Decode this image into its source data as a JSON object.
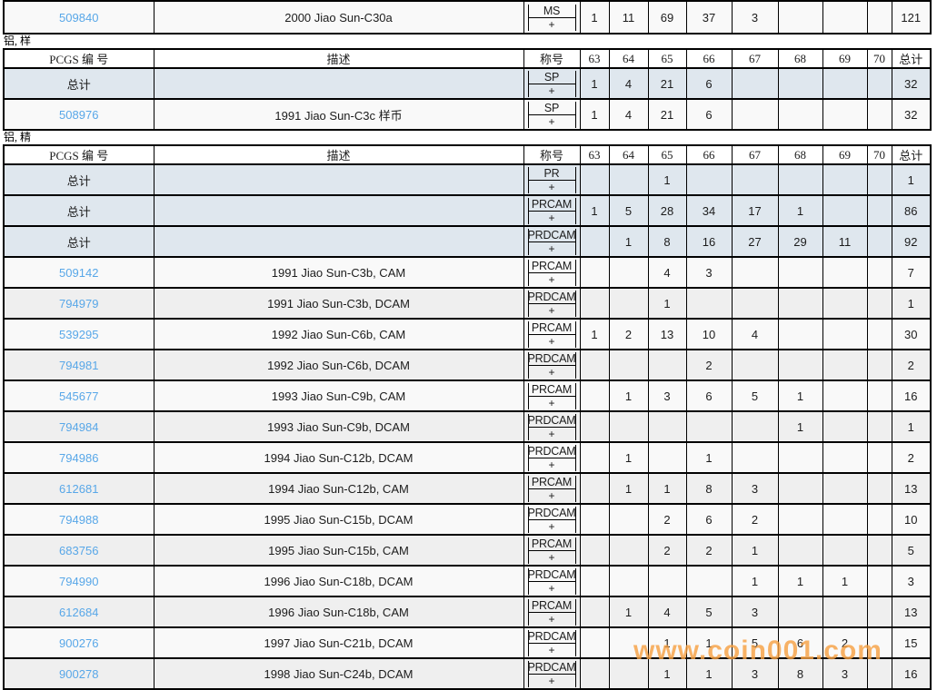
{
  "watermark": {
    "text": "www.coin001.com"
  },
  "colors": {
    "link": "#58a7e8",
    "total_row_bg": "#dfe7ee",
    "alt_row_bg": "#efefef",
    "row_bg": "#f9f9f9",
    "watermark": "#f7a041",
    "border": "#000000"
  },
  "designation_plus": "+",
  "columns": {
    "pcgs": "PCGS 编 号",
    "description": "描述",
    "designation": "称号",
    "grades": [
      "63",
      "64",
      "65",
      "66",
      "67",
      "68",
      "69",
      "70"
    ],
    "total": "总计"
  },
  "sections": [
    {
      "label": "",
      "has_header": false,
      "rows": [
        {
          "pcgs": "509840",
          "is_total": false,
          "desc": "2000 Jiao Sun-C30a",
          "desig": "MS",
          "grades": [
            "1",
            "11",
            "69",
            "37",
            "3",
            "",
            "",
            ""
          ],
          "total": "121"
        }
      ]
    },
    {
      "label": "铝, 样",
      "has_header": true,
      "rows": [
        {
          "pcgs": "总计",
          "is_total": true,
          "desc": "",
          "desig": "SP",
          "grades": [
            "1",
            "4",
            "21",
            "6",
            "",
            "",
            "",
            ""
          ],
          "total": "32"
        },
        {
          "pcgs": "508976",
          "is_total": false,
          "desc": "1991 Jiao Sun-C3c 样币",
          "desig": "SP",
          "grades": [
            "1",
            "4",
            "21",
            "6",
            "",
            "",
            "",
            ""
          ],
          "total": "32"
        }
      ]
    },
    {
      "label": "铝, 精",
      "has_header": true,
      "rows": [
        {
          "pcgs": "总计",
          "is_total": true,
          "desc": "",
          "desig": "PR",
          "grades": [
            "",
            "",
            "1",
            "",
            "",
            "",
            "",
            ""
          ],
          "total": "1"
        },
        {
          "pcgs": "总计",
          "is_total": true,
          "desc": "",
          "desig": "PRCAM",
          "grades": [
            "1",
            "5",
            "28",
            "34",
            "17",
            "1",
            "",
            ""
          ],
          "total": "86"
        },
        {
          "pcgs": "总计",
          "is_total": true,
          "desc": "",
          "desig": "PRDCAM",
          "grades": [
            "",
            "1",
            "8",
            "16",
            "27",
            "29",
            "11",
            ""
          ],
          "total": "92"
        },
        {
          "pcgs": "509142",
          "is_total": false,
          "desc": "1991 Jiao Sun-C3b, CAM",
          "desig": "PRCAM",
          "grades": [
            "",
            "",
            "4",
            "3",
            "",
            "",
            "",
            ""
          ],
          "total": "7"
        },
        {
          "pcgs": "794979",
          "is_total": false,
          "desc": "1991 Jiao Sun-C3b, DCAM",
          "desig": "PRDCAM",
          "grades": [
            "",
            "",
            "1",
            "",
            "",
            "",
            "",
            ""
          ],
          "total": "1"
        },
        {
          "pcgs": "539295",
          "is_total": false,
          "desc": "1992 Jiao Sun-C6b, CAM",
          "desig": "PRCAM",
          "grades": [
            "1",
            "2",
            "13",
            "10",
            "4",
            "",
            "",
            ""
          ],
          "total": "30"
        },
        {
          "pcgs": "794981",
          "is_total": false,
          "desc": "1992 Jiao Sun-C6b, DCAM",
          "desig": "PRDCAM",
          "grades": [
            "",
            "",
            "",
            "2",
            "",
            "",
            "",
            ""
          ],
          "total": "2"
        },
        {
          "pcgs": "545677",
          "is_total": false,
          "desc": "1993 Jiao Sun-C9b, CAM",
          "desig": "PRCAM",
          "grades": [
            "",
            "1",
            "3",
            "6",
            "5",
            "1",
            "",
            ""
          ],
          "total": "16"
        },
        {
          "pcgs": "794984",
          "is_total": false,
          "desc": "1993 Jiao Sun-C9b, DCAM",
          "desig": "PRDCAM",
          "grades": [
            "",
            "",
            "",
            "",
            "",
            "1",
            "",
            ""
          ],
          "total": "1"
        },
        {
          "pcgs": "794986",
          "is_total": false,
          "desc": "1994 Jiao Sun-C12b, DCAM",
          "desig": "PRDCAM",
          "grades": [
            "",
            "1",
            "",
            "1",
            "",
            "",
            "",
            ""
          ],
          "total": "2"
        },
        {
          "pcgs": "612681",
          "is_total": false,
          "desc": "1994 Jiao Sun-C12b, CAM",
          "desig": "PRCAM",
          "grades": [
            "",
            "1",
            "1",
            "8",
            "3",
            "",
            "",
            ""
          ],
          "total": "13"
        },
        {
          "pcgs": "794988",
          "is_total": false,
          "desc": "1995 Jiao Sun-C15b, DCAM",
          "desig": "PRDCAM",
          "grades": [
            "",
            "",
            "2",
            "6",
            "2",
            "",
            "",
            ""
          ],
          "total": "10"
        },
        {
          "pcgs": "683756",
          "is_total": false,
          "desc": "1995 Jiao Sun-C15b, CAM",
          "desig": "PRCAM",
          "grades": [
            "",
            "",
            "2",
            "2",
            "1",
            "",
            "",
            ""
          ],
          "total": "5"
        },
        {
          "pcgs": "794990",
          "is_total": false,
          "desc": "1996 Jiao Sun-C18b, DCAM",
          "desig": "PRDCAM",
          "grades": [
            "",
            "",
            "",
            "",
            "1",
            "1",
            "1",
            ""
          ],
          "total": "3"
        },
        {
          "pcgs": "612684",
          "is_total": false,
          "desc": "1996 Jiao Sun-C18b, CAM",
          "desig": "PRCAM",
          "grades": [
            "",
            "1",
            "4",
            "5",
            "3",
            "",
            "",
            ""
          ],
          "total": "13"
        },
        {
          "pcgs": "900276",
          "is_total": false,
          "desc": "1997 Jiao Sun-C21b, DCAM",
          "desig": "PRDCAM",
          "grades": [
            "",
            "",
            "1",
            "1",
            "5",
            "6",
            "2",
            ""
          ],
          "total": "15"
        },
        {
          "pcgs": "900278",
          "is_total": false,
          "desc": "1998 Jiao Sun-C24b, DCAM",
          "desig": "PRDCAM",
          "grades": [
            "",
            "",
            "1",
            "1",
            "3",
            "8",
            "3",
            ""
          ],
          "total": "16"
        }
      ]
    }
  ]
}
